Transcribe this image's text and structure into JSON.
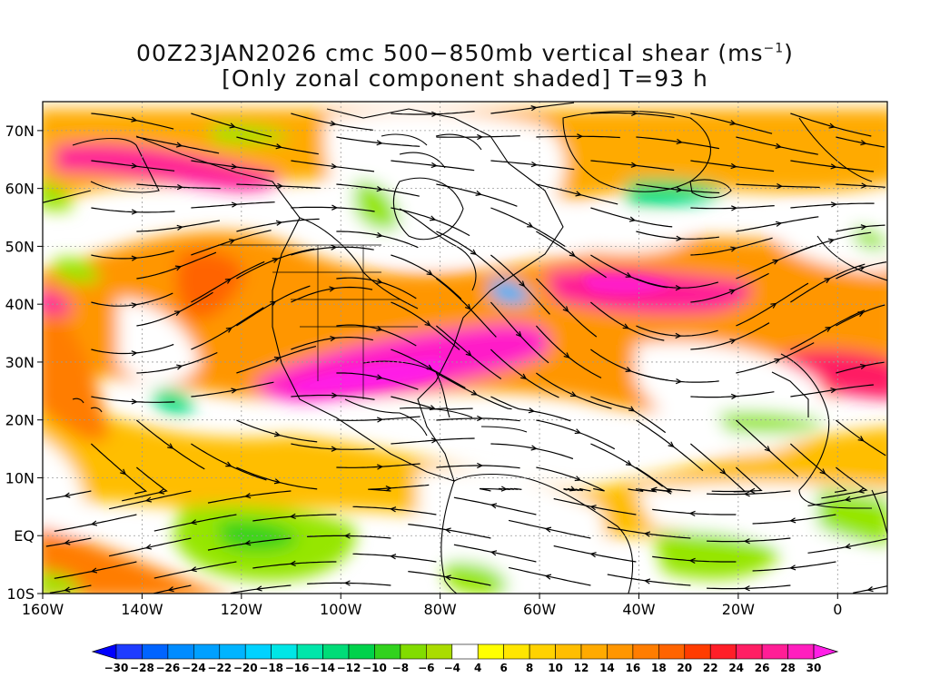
{
  "header": {
    "title_main": "00Z23JAN2026 cmc 500−850mb vertical shear (ms",
    "title_unit_sup": "−1",
    "title_close": ")",
    "subtitle": "[Only zonal component shaded] T=93 h"
  },
  "map": {
    "lon_range": [
      -160,
      10
    ],
    "lat_range": [
      -10,
      75
    ],
    "lon_labels": [
      {
        "lon": -160,
        "text": "160W"
      },
      {
        "lon": -140,
        "text": "140W"
      },
      {
        "lon": -120,
        "text": "120W"
      },
      {
        "lon": -100,
        "text": "100W"
      },
      {
        "lon": -80,
        "text": "80W"
      },
      {
        "lon": -60,
        "text": "60W"
      },
      {
        "lon": -40,
        "text": "40W"
      },
      {
        "lon": -20,
        "text": "20W"
      },
      {
        "lon": 0,
        "text": "0"
      }
    ],
    "lat_labels": [
      {
        "lat": 70,
        "text": "70N"
      },
      {
        "lat": 60,
        "text": "60N"
      },
      {
        "lat": 50,
        "text": "50N"
      },
      {
        "lat": 40,
        "text": "40N"
      },
      {
        "lat": 30,
        "text": "30N"
      },
      {
        "lat": 20,
        "text": "20N"
      },
      {
        "lat": 10,
        "text": "10N"
      },
      {
        "lat": 0,
        "text": "EQ"
      },
      {
        "lat": -10,
        "text": "10S"
      }
    ]
  },
  "colorbar": {
    "labels": [
      "−30",
      "−28",
      "−26",
      "−24",
      "−22",
      "−20",
      "−18",
      "−16",
      "−14",
      "−12",
      "−10",
      "−8",
      "−6",
      "−4",
      "4",
      "6",
      "8",
      "10",
      "12",
      "14",
      "16",
      "18",
      "20",
      "22",
      "24",
      "26",
      "28",
      "30"
    ],
    "colors": [
      "#1e3cff",
      "#0064ff",
      "#008cff",
      "#00a0ff",
      "#00b4ff",
      "#00d2ff",
      "#00e6e6",
      "#00e6aa",
      "#00dc78",
      "#00d24b",
      "#32d21e",
      "#82dc00",
      "#aadc00",
      "#ffffff",
      "#ffff00",
      "#ffe600",
      "#ffd200",
      "#ffbe00",
      "#ffaa00",
      "#ff9600",
      "#ff7d00",
      "#ff6400",
      "#ff3c00",
      "#ff1e28",
      "#ff1e64",
      "#ff1e96",
      "#ff1ebe"
    ],
    "under_color": "#0000ff",
    "over_color": "#ff1ee6"
  },
  "colors": {
    "weak": "#ffffff",
    "jet_core": "#ff1ec8",
    "easterly": "#96e600",
    "coastline": "#000000"
  }
}
